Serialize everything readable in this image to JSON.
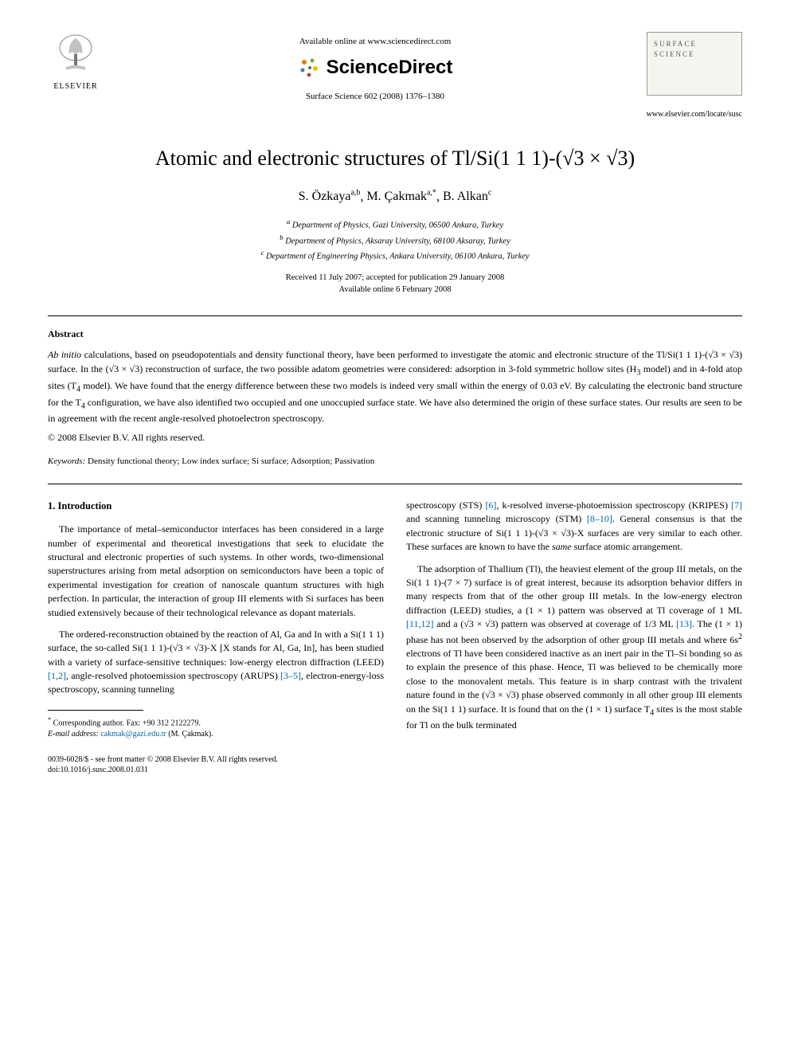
{
  "header": {
    "available_online": "Available online at www.sciencedirect.com",
    "sciencedirect": "ScienceDirect",
    "journal_ref": "Surface Science 602 (2008) 1376–1380",
    "elsevier_label": "ELSEVIER",
    "journal_cover_text": "SURFACE SCIENCE",
    "locate_url": "www.elsevier.com/locate/susc"
  },
  "title": "Atomic and electronic structures of Tl/Si(1 1 1)-(√3 × √3)",
  "authors": [
    {
      "name": "S. Özkaya",
      "marks": "a,b"
    },
    {
      "name": "M. Çakmak",
      "marks": "a,*"
    },
    {
      "name": "B. Alkan",
      "marks": "c"
    }
  ],
  "affiliations": {
    "a": "Department of Physics, Gazi University, 06500 Ankara, Turkey",
    "b": "Department of Physics, Aksaray University, 68100 Aksaray, Turkey",
    "c": "Department of Engineering Physics, Ankara University, 06100 Ankara, Turkey"
  },
  "dates": {
    "received": "Received 11 July 2007; accepted for publication 29 January 2008",
    "available": "Available online 6 February 2008"
  },
  "abstract": {
    "heading": "Abstract",
    "body_html": "<em>Ab initio</em> calculations, based on pseudopotentials and density functional theory, have been performed to investigate the atomic and electronic structure of the Tl/Si(1 1 1)-(√3 × √3) surface. In the (√3 × √3) reconstruction of surface, the two possible adatom geometries were considered: adsorption in 3-fold symmetric hollow sites (H<sub>3</sub> model) and in 4-fold atop sites (T<sub>4</sub> model). We have found that the energy difference between these two models is indeed very small within the energy of 0.03 eV. By calculating the electronic band structure for the T<sub>4</sub> configuration, we have also identified two occupied and one unoccupied surface state. We have also determined the origin of these surface states. Our results are seen to be in agreement with the recent angle-resolved photoelectron spectroscopy.",
    "copyright": "© 2008 Elsevier B.V. All rights reserved."
  },
  "keywords": {
    "label": "Keywords:",
    "text": " Density functional theory; Low index surface; Si surface; Adsorption; Passivation"
  },
  "section1": {
    "heading": "1. Introduction",
    "p1": "The importance of metal–semiconductor interfaces has been considered in a large number of experimental and theoretical investigations that seek to elucidate the structural and electronic properties of such systems. In other words, two-dimensional superstructures arising from metal adsorption on semiconductors have been a topic of experimental investigation for creation of nanoscale quantum structures with high perfection. In particular, the interaction of group III elements with Si surfaces has been studied extensively because of their technological relevance as dopant materials.",
    "p2_html": "The ordered-reconstruction obtained by the reaction of Al, Ga and In with a Si(1 1 1) surface, the so-called Si(1 1 1)-(√3 × √3)-X [X stands for Al, Ga, In], has been studied with a variety of surface-sensitive techniques: low-energy electron diffraction (LEED) <span class=\"ref-link\">[1,2]</span>, angle-resolved photoemission spectroscopy (ARUPS) <span class=\"ref-link\">[3–5]</span>, electron-energy-loss spectroscopy, scanning tunneling",
    "p3_html": "spectroscopy (STS) <span class=\"ref-link\">[6]</span>, k-resolved inverse-photoemission spectroscopy (KRIPES) <span class=\"ref-link\">[7]</span> and scanning tunneling microscopy (STM) <span class=\"ref-link\">[8–10]</span>. General consensus is that the electronic structure of Si(1 1 1)-(√3 × √3)-X surfaces are very similar to each other. These surfaces are known to have the <em>same</em> surface atomic arrangement.",
    "p4_html": "The adsorption of Thallium (Tl), the heaviest element of the group III metals, on the Si(1 1 1)-(7 × 7) surface is of great interest, because its adsorption behavior differs in many respects from that of the other group III metals. In the low-energy electron diffraction (LEED) studies, a (1 × 1) pattern was observed at Tl coverage of 1 ML <span class=\"ref-link\">[11,12]</span> and a (√3 × √3) pattern was observed at coverage of 1/3 ML <span class=\"ref-link\">[13]</span>. The (1 × 1) phase has not been observed by the adsorption of other group III metals and where 6s<sup>2</sup> electrons of Tl have been considered inactive as an inert pair in the Tl–Si bonding so as to explain the presence of this phase. Hence, Tl was believed to be chemically more close to the monovalent metals. This feature is in sharp contrast with the trivalent nature found in the (√3 × √3) phase observed commonly in all other group III elements on the Si(1 1 1) surface. It is found that on the (1 × 1) surface T<sub>4</sub> sites is the most stable for Tl on the bulk terminated"
  },
  "footnote": {
    "corresponding": "Corresponding author. Fax: +90 312 2122279.",
    "email_label": "E-mail address:",
    "email": "cakmak@gazi.edu.tr",
    "email_name": "(M. Çakmak)."
  },
  "bottom": {
    "line1": "0039-6028/$ - see front matter © 2008 Elsevier B.V. All rights reserved.",
    "line2": "doi:10.1016/j.susc.2008.01.031"
  },
  "colors": {
    "link": "#0066aa",
    "text": "#000000",
    "bg": "#ffffff",
    "cover_bg": "#f5f5f0",
    "cover_border": "#999999"
  }
}
